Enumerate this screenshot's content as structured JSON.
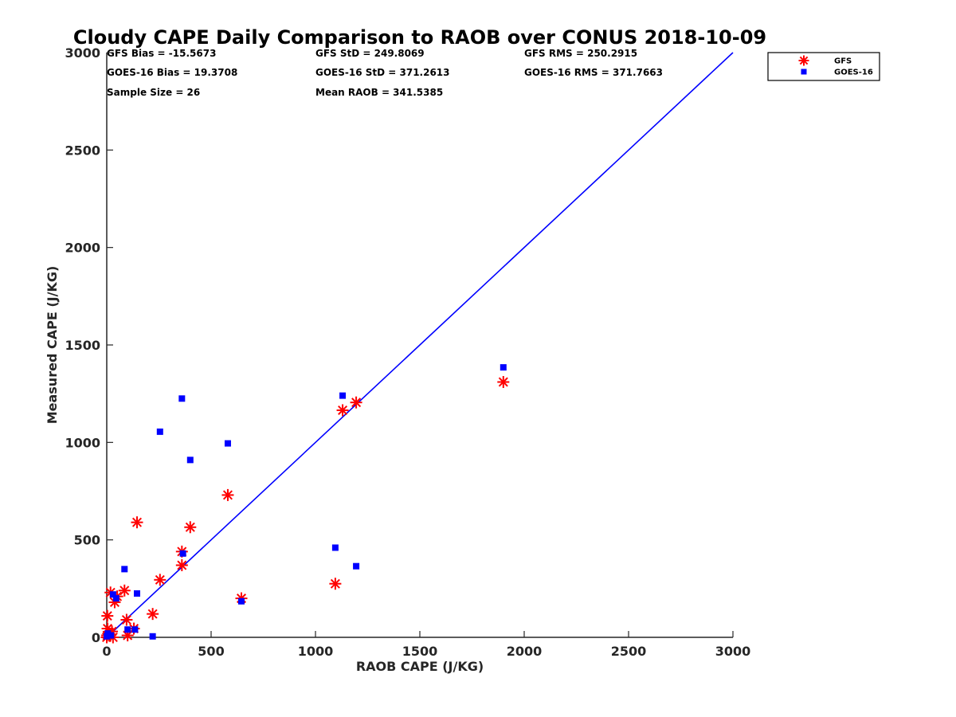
{
  "chart_data": {
    "type": "scatter",
    "title": "Cloudy CAPE Daily Comparison to RAOB over CONUS 2018-10-09",
    "xlabel": "RAOB CAPE (J/KG)",
    "ylabel": "Measured CAPE (J/KG)",
    "xlim": [
      0,
      3000
    ],
    "ylim": [
      0,
      3000
    ],
    "xticks": [
      0,
      500,
      1000,
      1500,
      2000,
      2500,
      3000
    ],
    "yticks": [
      0,
      500,
      1000,
      1500,
      2000,
      2500,
      3000
    ],
    "grid": false,
    "legend_position": "top-right (outside plot)",
    "reference_line": {
      "from": [
        0,
        0
      ],
      "to": [
        3000,
        3000
      ],
      "color": "#0000ff"
    },
    "stats": [
      [
        "GFS Bias = -15.5673",
        "GFS StD = 249.8069",
        "GFS RMS = 250.2915"
      ],
      [
        "GOES-16 Bias = 19.3708",
        "GOES-16 StD = 371.2613",
        "GOES-16 RMS = 371.7663"
      ],
      [
        "Sample Size = 26",
        "Mean RAOB = 341.5385",
        ""
      ]
    ],
    "series": [
      {
        "name": "GFS",
        "marker": "asterisk",
        "color": "#ff0000",
        "points": [
          [
            0,
            0
          ],
          [
            2,
            10
          ],
          [
            4,
            45
          ],
          [
            3,
            110
          ],
          [
            18,
            230
          ],
          [
            25,
            30
          ],
          [
            30,
            0
          ],
          [
            38,
            180
          ],
          [
            50,
            210
          ],
          [
            85,
            240
          ],
          [
            95,
            90
          ],
          [
            100,
            10
          ],
          [
            130,
            45
          ],
          [
            145,
            590
          ],
          [
            220,
            120
          ],
          [
            255,
            295
          ],
          [
            360,
            440
          ],
          [
            360,
            370
          ],
          [
            400,
            565
          ],
          [
            580,
            730
          ],
          [
            645,
            200
          ],
          [
            1095,
            275
          ],
          [
            1130,
            1165
          ],
          [
            1195,
            1205
          ],
          [
            1900,
            1310
          ]
        ]
      },
      {
        "name": "GOES-16",
        "marker": "square",
        "color": "#0000ff",
        "points": [
          [
            0,
            5
          ],
          [
            5,
            20
          ],
          [
            20,
            10
          ],
          [
            30,
            220
          ],
          [
            45,
            200
          ],
          [
            85,
            350
          ],
          [
            100,
            40
          ],
          [
            135,
            40
          ],
          [
            145,
            225
          ],
          [
            220,
            5
          ],
          [
            255,
            1055
          ],
          [
            360,
            1225
          ],
          [
            365,
            430
          ],
          [
            400,
            910
          ],
          [
            580,
            995
          ],
          [
            645,
            185
          ],
          [
            1095,
            460
          ],
          [
            1130,
            1240
          ],
          [
            1195,
            365
          ],
          [
            1900,
            1385
          ]
        ]
      }
    ]
  }
}
